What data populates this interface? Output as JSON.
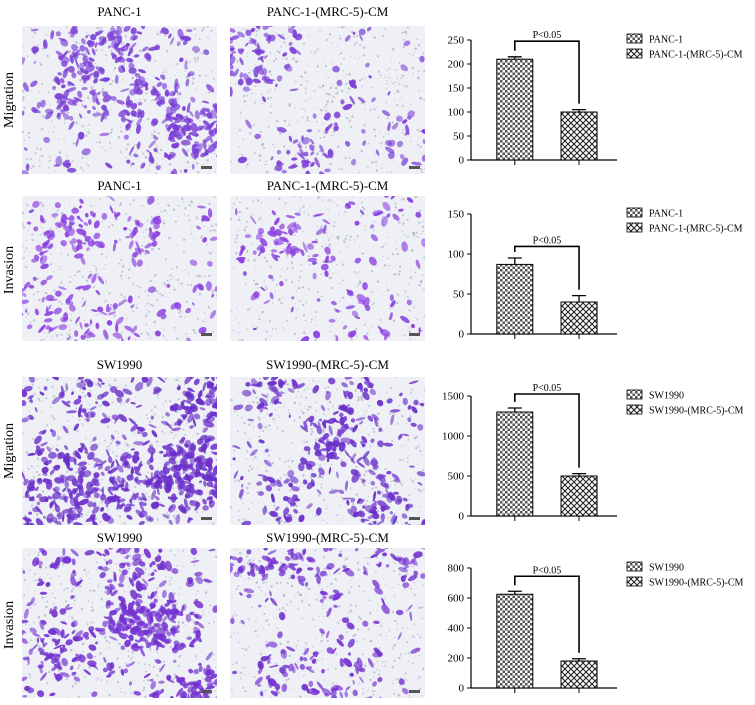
{
  "panels": [
    {
      "side_label": "Migration",
      "left_title": "PANC-1",
      "right_title": "PANC-1-(MRC-5)-CM",
      "stain": "#7b3fd6",
      "density": [
        0.55,
        0.22
      ]
    },
    {
      "side_label": "Invasion",
      "left_title": "PANC-1",
      "right_title": "PANC-1-(MRC-5)-CM",
      "stain": "#8a3ee0",
      "density": [
        0.25,
        0.12
      ]
    },
    {
      "side_label": "Migration",
      "left_title": "SW1990",
      "right_title": "SW1990-(MRC-5)-CM",
      "stain": "#6a2fc9",
      "density": [
        0.95,
        0.45
      ]
    },
    {
      "side_label": "Invasion",
      "left_title": "SW1990",
      "right_title": "SW1990-(MRC-5)-CM",
      "stain": "#7331d0",
      "density": [
        0.7,
        0.3
      ]
    }
  ],
  "chart_data": [
    {
      "type": "bar",
      "categories": [
        "PANC-1",
        "PANC-1-(MRC-5)-CM"
      ],
      "values": [
        210,
        100
      ],
      "errors": [
        5,
        5
      ],
      "ylim": [
        0,
        250
      ],
      "yticks": [
        0,
        50,
        100,
        150,
        200,
        250
      ],
      "yticklabels": [
        "0",
        "50",
        "100",
        "150",
        "200",
        "250"
      ],
      "annotation": "P<0.05",
      "legend": [
        "PANC-1",
        "PANC-1-(MRC-5)-CM"
      ],
      "legend_position": "right"
    },
    {
      "type": "bar",
      "categories": [
        "PANC-1",
        "PANC-1-(MRC-5)-CM"
      ],
      "values": [
        87,
        40
      ],
      "errors": [
        8,
        8
      ],
      "ylim": [
        0,
        150
      ],
      "yticks": [
        0,
        50,
        100,
        150
      ],
      "yticklabels": [
        "0",
        "50",
        "100",
        "150"
      ],
      "annotation": "P<0.05",
      "legend": [
        "PANC-1",
        "PANC-1-(MRC-5)-CM"
      ],
      "legend_position": "right"
    },
    {
      "type": "bar",
      "categories": [
        "SW1990",
        "SW1990-(MRC-5)-CM"
      ],
      "values": [
        1300,
        500
      ],
      "errors": [
        50,
        30
      ],
      "ylim": [
        0,
        1500
      ],
      "yticks": [
        0,
        500,
        1000,
        1500
      ],
      "yticklabels": [
        "0",
        "500",
        "1000",
        "1500"
      ],
      "annotation": "P<0.05",
      "legend": [
        "SW1990",
        "SW1990-(MRC-5)-CM"
      ],
      "legend_position": "right"
    },
    {
      "type": "bar",
      "categories": [
        "SW1990",
        "SW1990-(MRC-5)-CM"
      ],
      "values": [
        625,
        180
      ],
      "errors": [
        20,
        15
      ],
      "ylim": [
        0,
        800
      ],
      "yticks": [
        0,
        200,
        400,
        600,
        800
      ],
      "yticklabels": [
        "0",
        "200",
        "400",
        "600",
        "800"
      ],
      "annotation": "P<0.05",
      "legend": [
        "SW1990",
        "SW1990-(MRC-5)-CM"
      ],
      "legend_position": "right"
    }
  ]
}
